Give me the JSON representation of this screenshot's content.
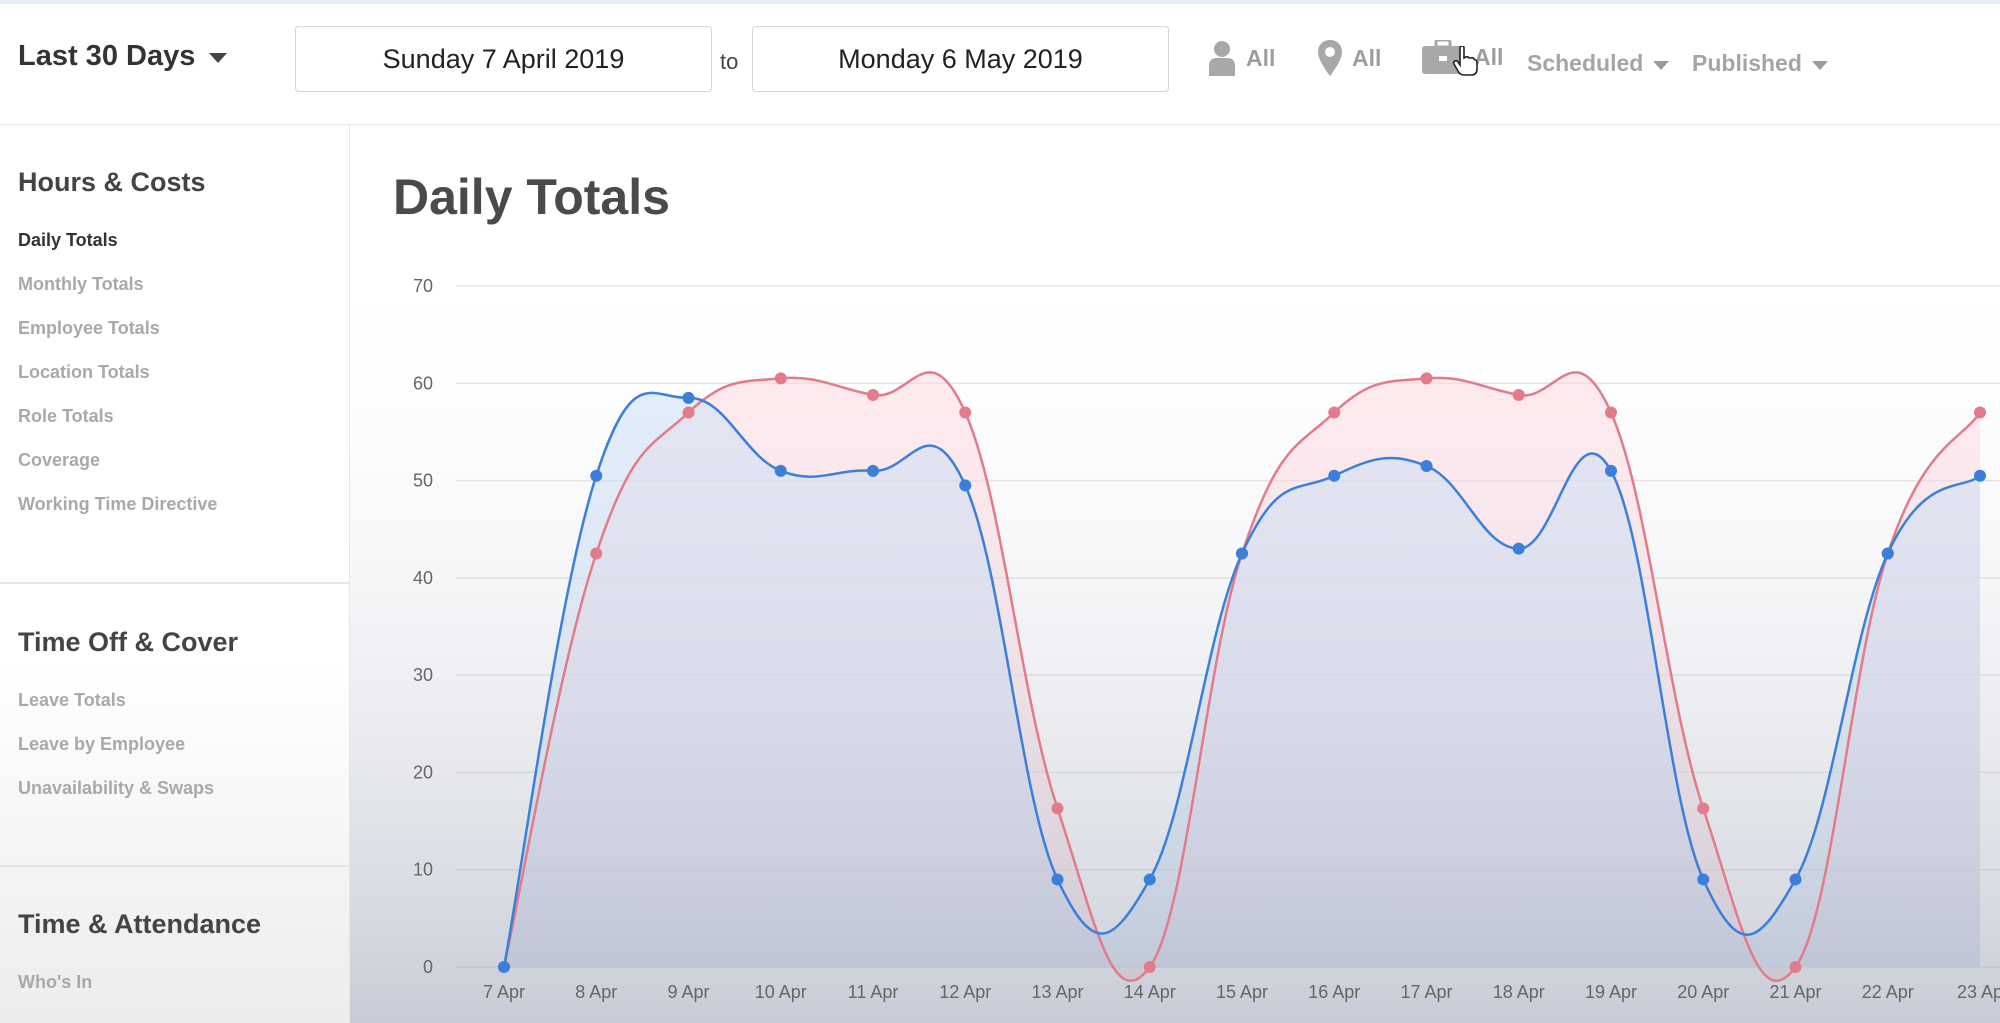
{
  "header": {
    "range_label": "Last 30 Days",
    "start_date": "Sunday 7 April 2019",
    "to_label": "to",
    "end_date": "Monday 6 May 2019",
    "filters": [
      {
        "icon": "person-icon",
        "label": "All"
      },
      {
        "icon": "location-pin-icon",
        "label": "All"
      },
      {
        "icon": "briefcase-icon",
        "label": "All"
      }
    ],
    "scheduled_label": "Scheduled",
    "published_label": "Published"
  },
  "sidebar": {
    "sections": [
      {
        "title": "Hours & Costs",
        "items": [
          "Daily Totals",
          "Monthly Totals",
          "Employee Totals",
          "Location Totals",
          "Role Totals",
          "Coverage",
          "Working Time Directive"
        ]
      },
      {
        "title": "Time Off & Cover",
        "items": [
          "Leave Totals",
          "Leave by Employee",
          "Unavailability & Swaps"
        ]
      },
      {
        "title": "Time & Attendance",
        "items": [
          "Who's In"
        ]
      }
    ],
    "active_item": "Daily Totals"
  },
  "main": {
    "title": "Daily Totals"
  },
  "colors": {
    "blue_series": "#3b7fd9",
    "red_series": "#e27b8a",
    "grid": "#e3e3e3"
  },
  "chart_data": {
    "type": "area",
    "title": "",
    "xlabel": "",
    "ylabel": "",
    "ylim": [
      0,
      70
    ],
    "yticks": [
      0,
      10,
      20,
      30,
      40,
      50,
      60,
      70
    ],
    "grid": true,
    "categories": [
      "7 Apr",
      "8 Apr",
      "9 Apr",
      "10 Apr",
      "11 Apr",
      "12 Apr",
      "13 Apr",
      "14 Apr",
      "15 Apr",
      "16 Apr",
      "17 Apr",
      "18 Apr",
      "19 Apr",
      "20 Apr",
      "21 Apr",
      "22 Apr",
      "23 Ap"
    ],
    "series": [
      {
        "color": "#3b7fd9",
        "values": [
          0,
          50.5,
          58.5,
          51,
          51,
          49.5,
          9,
          9,
          42.5,
          50.5,
          51.5,
          43,
          51,
          9,
          9,
          42.5,
          50.5
        ]
      },
      {
        "color": "#e27b8a",
        "values": [
          0,
          42.5,
          57,
          60.5,
          58.8,
          57,
          16.3,
          0,
          42.5,
          57,
          60.5,
          58.8,
          57,
          16.3,
          0,
          42.5,
          57
        ]
      }
    ]
  }
}
